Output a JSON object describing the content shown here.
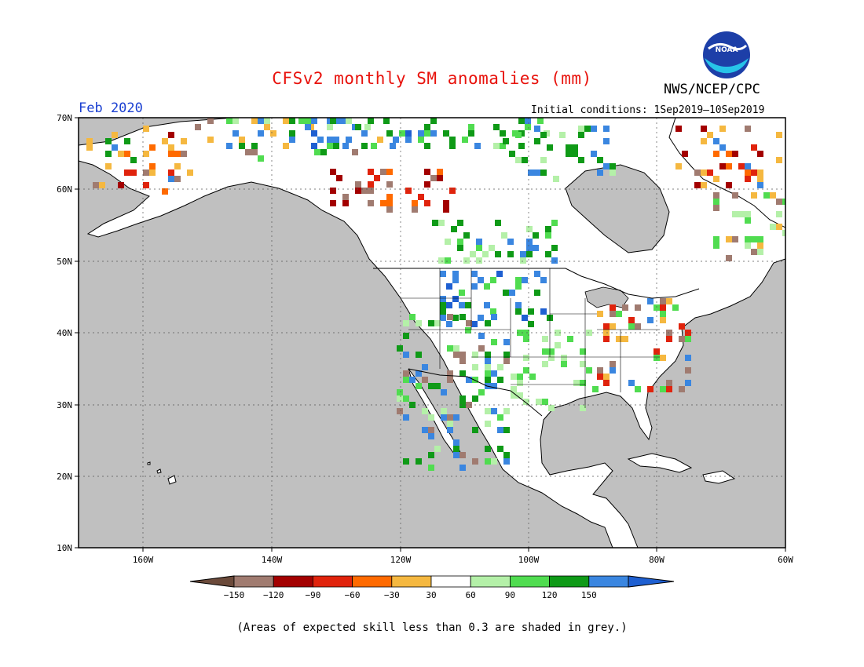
{
  "title": "CFSv2 monthly SM anomalies (mm)",
  "agency": "NWS/NCEP/CPC",
  "logo_text": "NOAA",
  "month": "Feb 2020",
  "initial_conditions": "Initial conditions: 1Sep2019–10Sep2019",
  "lat_labels": [
    "70N",
    "60N",
    "50N",
    "40N",
    "30N",
    "20N",
    "10N"
  ],
  "lon_labels": [
    "160W",
    "140W",
    "120W",
    "100W",
    "80W",
    "60W"
  ],
  "colorbar": {
    "labels": [
      "−150",
      "−120",
      "−90",
      "−60",
      "−30",
      "30",
      "60",
      "90",
      "120",
      "150"
    ],
    "colors": [
      "#6b4a3a",
      "#a07b70",
      "#a30000",
      "#e0230c",
      "#ff6a00",
      "#f5b840",
      "#ffffff",
      "#b4f0a8",
      "#50dc50",
      "#0f9a17",
      "#3a86e0",
      "#1e5fd1"
    ]
  },
  "colors": {
    "ocean": "#c0c0c0",
    "land": "#ffffff",
    "title": "#e8120c",
    "month": "#1a3fd1"
  },
  "footnote": "(Areas of expected skill less than 0.3 are shaded in grey.)"
}
